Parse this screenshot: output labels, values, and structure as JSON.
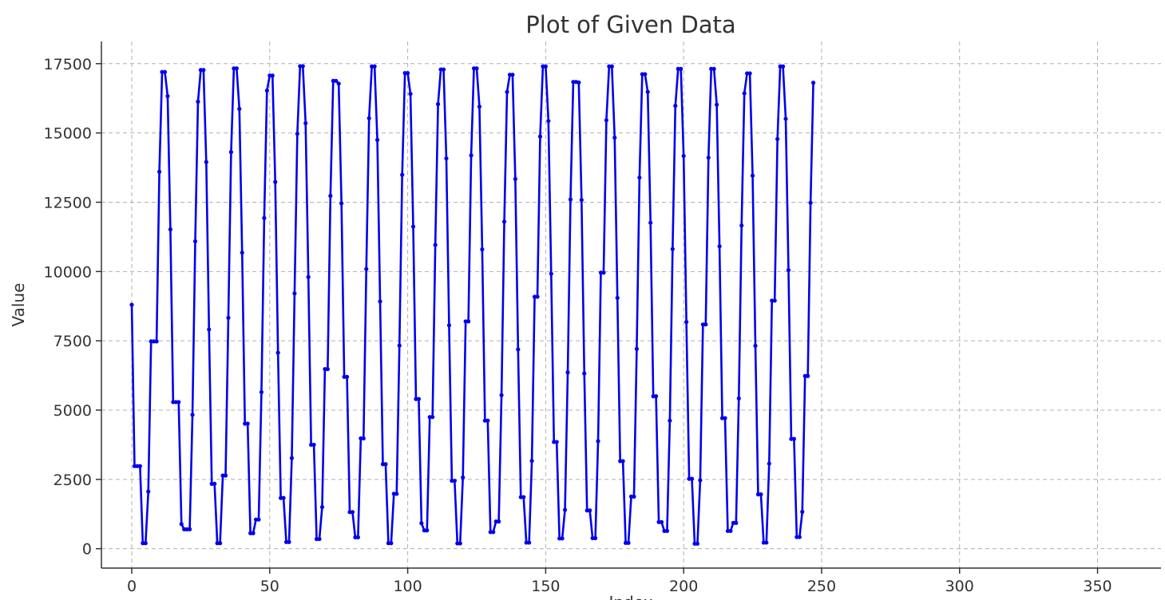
{
  "chart_data": {
    "type": "line",
    "title": "Plot of Given Data",
    "xlabel": "Index",
    "ylabel": "Value",
    "xlim": [
      -11,
      373
    ],
    "ylim": [
      -700,
      18300
    ],
    "x_ticks": [
      0,
      50,
      100,
      150,
      200,
      250,
      300,
      350
    ],
    "y_ticks": [
      0,
      2500,
      5000,
      7500,
      10000,
      12500,
      15000,
      17500
    ],
    "grid": true,
    "line_color": "#0000ee",
    "series": [
      {
        "values": [
          8800,
          2980,
          2980,
          2980,
          200,
          200,
          2060,
          7480,
          7480,
          7480,
          13600,
          17200,
          17200,
          16330,
          11520,
          5290,
          5290,
          5290,
          890,
          700,
          700,
          700,
          4830,
          11090,
          16130,
          17270,
          17270,
          13950,
          7910,
          2340,
          2340,
          200,
          200,
          2640,
          2640,
          8330,
          14310,
          17330,
          17330,
          15870,
          10680,
          4510,
          4510,
          560,
          560,
          1050,
          1050,
          5650,
          11930,
          16530,
          17070,
          17070,
          13230,
          7070,
          1830,
          1830,
          240,
          240,
          3270,
          9210,
          14970,
          17410,
          17410,
          15350,
          9800,
          3750,
          3750,
          350,
          350,
          1500,
          6480,
          6480,
          12730,
          16880,
          16880,
          16780,
          12460,
          6200,
          6200,
          1320,
          1320,
          410,
          410,
          3980,
          3980,
          10090,
          15530,
          17400,
          17400,
          14750,
          8920,
          3050,
          3050,
          200,
          200,
          1980,
          1980,
          7330,
          13490,
          17160,
          17160,
          16410,
          11620,
          5400,
          5400,
          920,
          660,
          660,
          4750,
          4750,
          10960,
          16040,
          17290,
          17290,
          14080,
          8060,
          2450,
          2450,
          190,
          190,
          2570,
          8200,
          8200,
          14190,
          17330,
          17330,
          15950,
          10800,
          4620,
          4620,
          600,
          600,
          980,
          980,
          5540,
          11800,
          16480,
          17100,
          17100,
          13340,
          7190,
          1860,
          1860,
          220,
          220,
          3170,
          9090,
          9090,
          14870,
          17400,
          17400,
          15430,
          9920,
          3850,
          3850,
          370,
          370,
          1400,
          6360,
          12600,
          16840,
          16840,
          16820,
          12580,
          6320,
          1380,
          1380,
          380,
          380,
          3880,
          9960,
          9960,
          15460,
          17400,
          17400,
          14830,
          9050,
          3160,
          3160,
          210,
          210,
          1880,
          1880,
          7210,
          13390,
          17120,
          17120,
          16480,
          11760,
          5500,
          5500,
          960,
          960,
          640,
          640,
          4620,
          10810,
          15980,
          17310,
          17310,
          14170,
          8180,
          2520,
          2520,
          180,
          180,
          2470,
          8090,
          8090,
          14110,
          17310,
          17310,
          16020,
          10910,
          4710,
          4710,
          640,
          640,
          930,
          930,
          5420,
          11660,
          16430,
          17150,
          17150,
          13460,
          7320,
          1960,
          1960,
          220,
          220,
          3070,
          8950,
          8950,
          14780,
          17400,
          17400,
          15510,
          10050,
          3960,
          3960,
          420,
          420,
          1330,
          6230,
          6230,
          12480,
          16810
        ]
      }
    ]
  }
}
